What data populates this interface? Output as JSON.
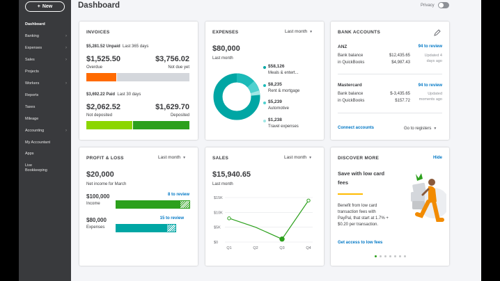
{
  "sidebar": {
    "new_label": "New",
    "items": [
      "Dashboard",
      "Banking",
      "Expenses",
      "Sales",
      "Projects",
      "Workers",
      "Reports",
      "Taxes",
      "Mileage",
      "Accounting",
      "My Accountant",
      "Apps",
      "Live",
      "Bookkeeping"
    ]
  },
  "header": {
    "title": "Dashboard",
    "privacy": "Privacy"
  },
  "invoices": {
    "title": "INVOICES",
    "unpaid": "$5,281.52 Unpaid",
    "unpaid_period": "Last 365 days",
    "overdue_amount": "$1,525.50",
    "overdue_label": "Overdue",
    "not_due_amount": "$3,756.02",
    "not_due_label": "Not due yet",
    "paid": "$3,692.22 Paid",
    "paid_period": "Last 30 days",
    "not_deposited_amount": "$2,062.52",
    "not_deposited_label": "Not deposited",
    "deposited_amount": "$1,629.70",
    "deposited_label": "Deposited",
    "colors": {
      "overdue": "#ff6a00",
      "not_due": "#d4d7dc",
      "not_deposited": "#8cd600",
      "deposited": "#2ca01c"
    }
  },
  "expenses": {
    "title": "EXPENSES",
    "period": "Last month",
    "total": "$80,000",
    "total_label": "Last month",
    "items": [
      {
        "amount": "$58,126",
        "label": "Meals & entert...",
        "color": "#00a6a4"
      },
      {
        "amount": "$8,235",
        "label": "Rent & mortgage",
        "color": "#1bbab8"
      },
      {
        "amount": "$5,239",
        "label": "Automotive",
        "color": "#4fd1cf"
      },
      {
        "amount": "$1,238",
        "label": "Travel expenses",
        "color": "#a0e7e5"
      }
    ]
  },
  "bank": {
    "title": "BANK ACCOUNTS",
    "accounts": [
      {
        "name": "ANZ",
        "review": "94 to review",
        "bank_label": "Bank balance",
        "bank_value": "$12,435.65",
        "qb_label": "in QuickBooks",
        "qb_value": "$4,987.43",
        "updated_1": "Updated 4",
        "updated_2": "days ago"
      },
      {
        "name": "Mastercard",
        "review": "94 to review",
        "bank_label": "Bank balance",
        "bank_value": "$-3,435.65",
        "qb_label": "in QuickBooks",
        "qb_value": "$157.72",
        "updated_1": "Updated",
        "updated_2": "moments ago"
      }
    ],
    "connect": "Connect accounts",
    "goto": "Go to registers"
  },
  "profit": {
    "title": "PROFIT & LOSS",
    "period": "Last month",
    "net": "$20,000",
    "net_label": "Net income for March",
    "income_amount": "$100,000",
    "income_label": "Income",
    "income_review": "8 to review",
    "expenses_amount": "$80,000",
    "expenses_label": "Expenses",
    "expenses_review": "15 to review"
  },
  "sales": {
    "title": "SALES",
    "period": "Last month",
    "total": "$15,940.65",
    "total_label": "Last month"
  },
  "discover": {
    "title": "DISCOVER MORE",
    "hide": "Hide",
    "headline_1": "Save with low card",
    "headline_2": "fees",
    "body_1": "Benefit from low card",
    "body_2": "transaction fees with",
    "body_3": "PayPal, that start at 1.7% +",
    "body_4": "$0.20 per transaction.",
    "link": "Get access to low fees"
  },
  "chart_data": {
    "type": "line",
    "categories": [
      "Q1",
      "Q2",
      "Q3",
      "Q4"
    ],
    "values": [
      8000,
      5000,
      1000,
      14000
    ],
    "yticks": [
      "$0",
      "$5K",
      "$10K",
      "$15K"
    ],
    "ylim": [
      0,
      15000
    ],
    "color": "#2ca01c"
  }
}
